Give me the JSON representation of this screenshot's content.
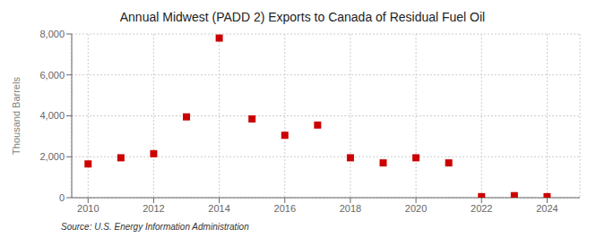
{
  "chart_data": {
    "type": "scatter",
    "title": "Annual Midwest (PADD 2) Exports to Canada of Residual Fuel Oil",
    "y_label": "Thousand Barrels",
    "annotation": "Source: U.S. Energy Information Administration",
    "x": [
      2010,
      2011,
      2012,
      2013,
      2014,
      2015,
      2016,
      2017,
      2018,
      2019,
      2020,
      2021,
      2022,
      2023,
      2024
    ],
    "values": [
      1650,
      1950,
      2150,
      3950,
      7800,
      3850,
      3050,
      3550,
      1950,
      1700,
      1950,
      1700,
      50,
      100,
      50
    ],
    "color": "#cc0000",
    "marker": "square",
    "grid": true,
    "xlim": [
      2009.5,
      2025.0
    ],
    "xticks": [
      2010,
      2012,
      2014,
      2016,
      2018,
      2020,
      2022,
      2024
    ],
    "ylim": [
      0,
      8000
    ],
    "yticks": [
      0,
      {
        "value": 2000,
        "label": "2,000"
      },
      {
        "value": 4000,
        "label": "4,000"
      },
      {
        "value": 6000,
        "label": "6,000"
      },
      {
        "value": 8000,
        "label": "8,000"
      }
    ]
  }
}
